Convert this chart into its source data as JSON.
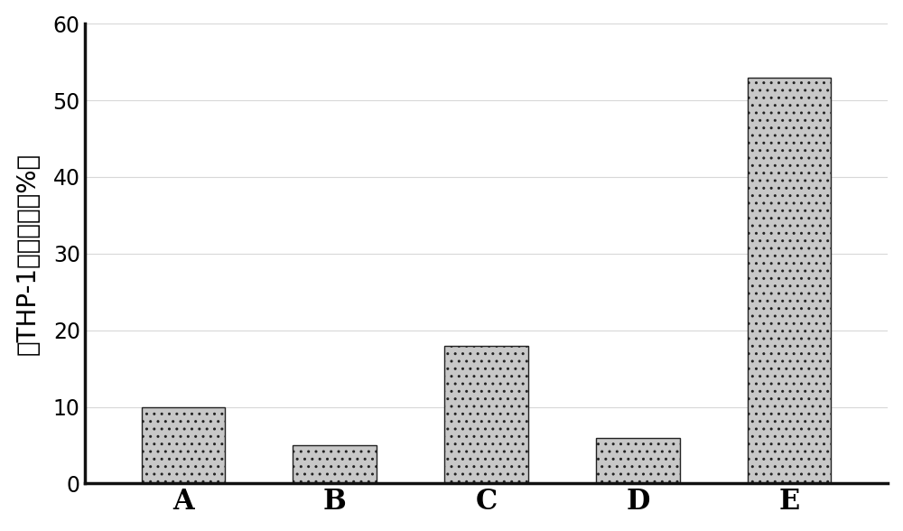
{
  "categories": [
    "A",
    "B",
    "C",
    "D",
    "E"
  ],
  "values": [
    10,
    5,
    18,
    6,
    53
  ],
  "bar_facecolor": "#c8c8c8",
  "bar_edgecolor": "#222222",
  "ylabel": "对THP-1杀伤活性（%）",
  "ylim": [
    0,
    60
  ],
  "yticks": [
    0,
    10,
    20,
    30,
    40,
    50,
    60
  ],
  "background_color": "#ffffff",
  "grid_color": "#d8d8d8",
  "bar_width": 0.55,
  "ylabel_fontsize": 20,
  "tick_fontsize": 17,
  "xtick_fontsize": 22,
  "spine_linewidth": 2.5,
  "figsize": [
    10.0,
    5.88
  ],
  "dpi": 100
}
